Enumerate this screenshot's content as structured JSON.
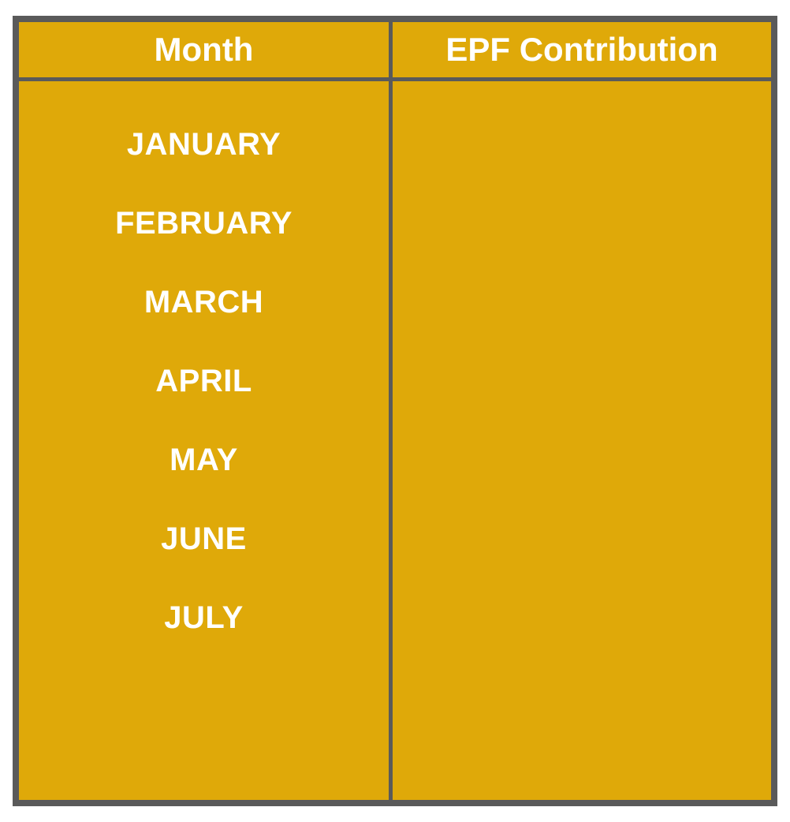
{
  "table": {
    "headers": {
      "month": "Month",
      "epf_contribution": "EPF Contribution"
    },
    "months": [
      "JANUARY",
      "FEBRUARY",
      "MARCH",
      "APRIL",
      "MAY",
      "JUNE",
      "JULY"
    ],
    "epf_values": []
  },
  "colors": {
    "cell_fill": "#dfa909",
    "border": "#5a5a5a",
    "text": "#ffffff"
  }
}
